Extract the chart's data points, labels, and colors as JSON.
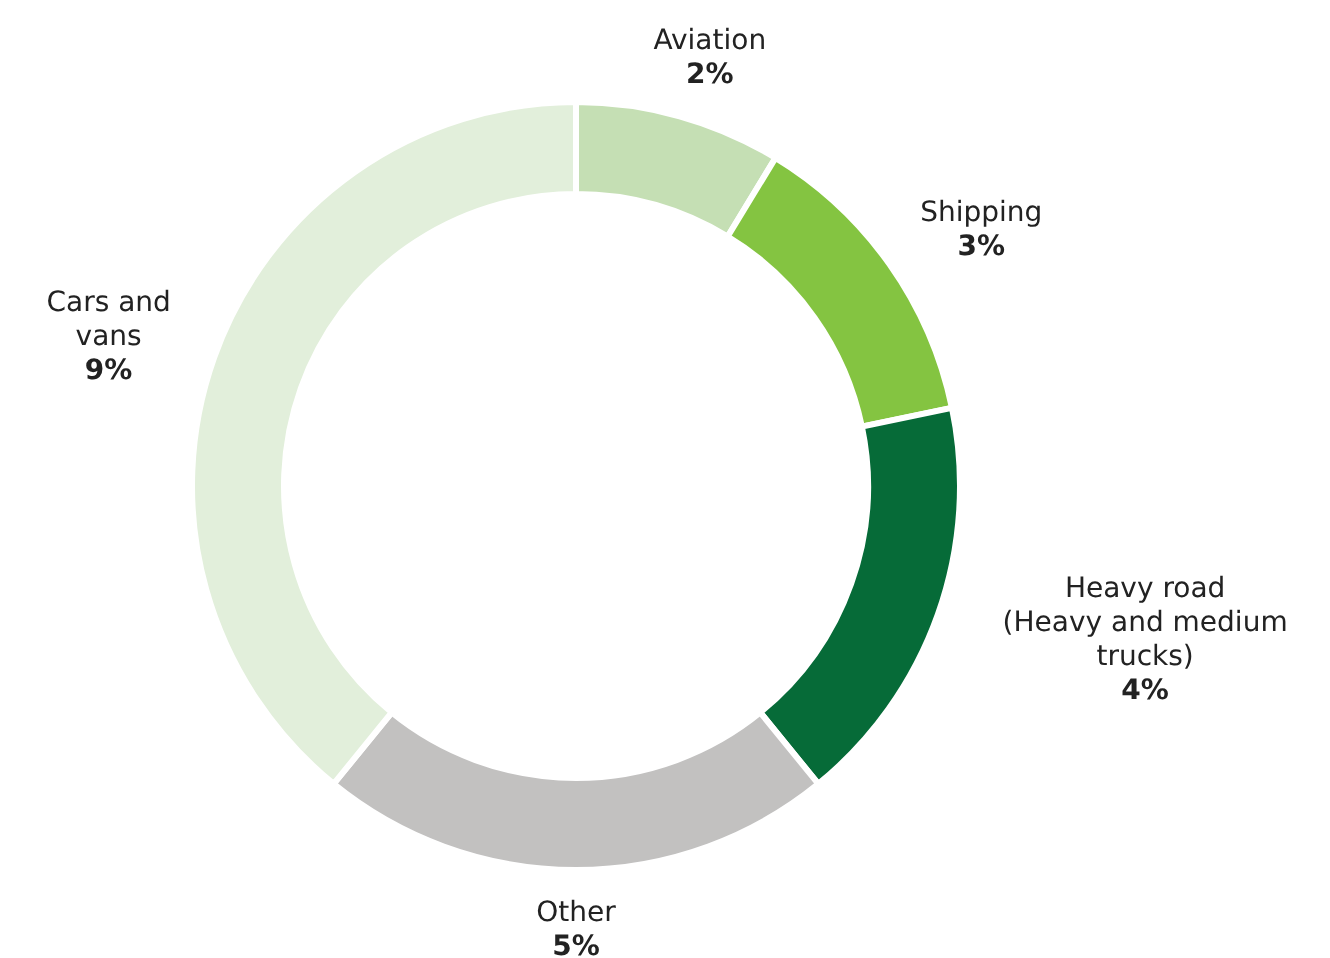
{
  "chart_data": {
    "type": "donut",
    "categories": [
      "Aviation",
      "Shipping",
      "Heavy road\n(Heavy and medium\ntrucks)",
      "Other",
      "Cars and\nvans"
    ],
    "values": [
      2,
      3,
      4,
      5,
      9
    ],
    "colors": [
      "#c5dfb4",
      "#84c441",
      "#066b38",
      "#c2c1c0",
      "#e2efdb"
    ],
    "value_labels": [
      "2%",
      "3%",
      "4%",
      "5%",
      "9%"
    ]
  }
}
